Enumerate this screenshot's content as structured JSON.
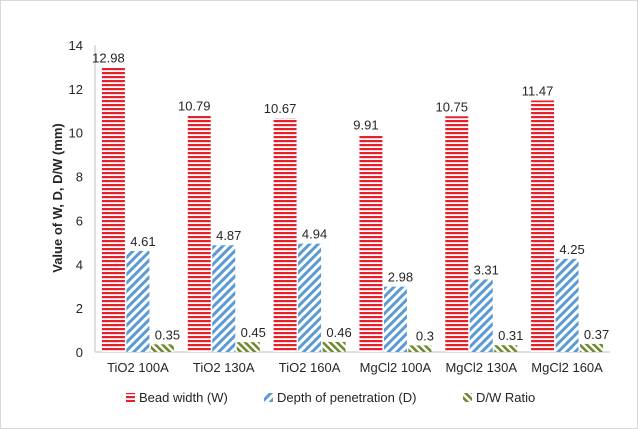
{
  "chart_data": {
    "type": "bar",
    "title": "",
    "xlabel": "",
    "ylabel": "Value of W, D, D/W  (mm)",
    "ylim": [
      0,
      14
    ],
    "yticks": [
      0,
      2,
      4,
      6,
      8,
      10,
      12,
      14
    ],
    "grid": false,
    "legend_position": "bottom",
    "categories": [
      "TiO2 100A",
      "TiO2 130A",
      "TiO2 160A",
      "MgCl2 100A",
      "MgCl2 130A",
      "MgCl2 160A"
    ],
    "series": [
      {
        "name": "Bead width (W)",
        "values": [
          12.98,
          10.79,
          10.67,
          9.91,
          10.75,
          11.47
        ],
        "labels": [
          "12.98",
          "10.79",
          "10.67",
          "9.91",
          "10.75",
          "11.47"
        ],
        "color": "#e8202a",
        "pattern": "horizontal-stripes"
      },
      {
        "name": "Depth of penetration (D)",
        "values": [
          4.61,
          4.87,
          4.94,
          2.98,
          3.31,
          4.25
        ],
        "labels": [
          "4.61",
          "4.87",
          "4.94",
          "2.98",
          "3.31",
          "4.25"
        ],
        "color": "#5b9bd5",
        "pattern": "diagonal-stripes"
      },
      {
        "name": "D/W Ratio",
        "values": [
          0.35,
          0.45,
          0.46,
          0.3,
          0.31,
          0.37
        ],
        "labels": [
          "0.35",
          "0.45",
          "0.46",
          "0.3",
          "0.31",
          "0.37"
        ],
        "color": "#70882e",
        "pattern": "diagonal-dashes"
      }
    ]
  }
}
